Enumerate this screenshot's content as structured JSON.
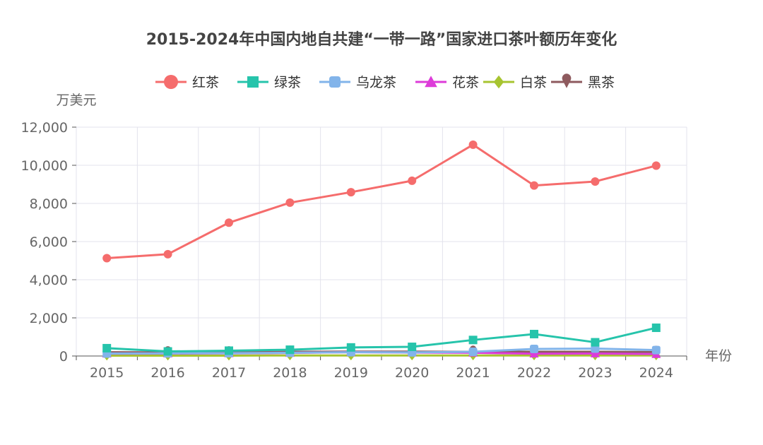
{
  "chart_data": {
    "type": "line",
    "title": "2015-2024年中国内地自共建“一带一路”国家进口茶叶额历年变化",
    "ylabel": "万美元",
    "xlabel": "年份",
    "ylim": [
      0,
      12000
    ],
    "yticks": [
      0,
      2000,
      4000,
      6000,
      8000,
      10000,
      12000
    ],
    "ytick_labels": [
      "0",
      "2,000",
      "4,000",
      "6,000",
      "8,000",
      "10,000",
      "12,000"
    ],
    "categories": [
      "2015",
      "2016",
      "2017",
      "2018",
      "2019",
      "2020",
      "2021",
      "2022",
      "2023",
      "2024"
    ],
    "legend_position": "top-center",
    "grid": true,
    "series": [
      {
        "name": "红茶",
        "color": "#f56c6c",
        "marker": "circle",
        "values": [
          5130,
          5340,
          6990,
          8040,
          8590,
          9190,
          11080,
          8940,
          9150,
          9980
        ]
      },
      {
        "name": "绿茶",
        "color": "#26c4ab",
        "marker": "square",
        "values": [
          410,
          240,
          280,
          330,
          450,
          480,
          840,
          1150,
          720,
          1480
        ]
      },
      {
        "name": "乌龙茶",
        "color": "#82b4ea",
        "marker": "roundrect",
        "values": [
          130,
          140,
          150,
          170,
          200,
          190,
          220,
          370,
          390,
          310
        ]
      },
      {
        "name": "花茶",
        "color": "#dd3bd9",
        "marker": "triangle",
        "values": [
          120,
          130,
          140,
          160,
          200,
          180,
          170,
          120,
          130,
          100
        ]
      },
      {
        "name": "白茶",
        "color": "#a7c430",
        "marker": "diamond",
        "values": [
          20,
          20,
          20,
          30,
          30,
          30,
          30,
          30,
          30,
          30
        ]
      },
      {
        "name": "黑茶",
        "color": "#8e5a5e",
        "marker": "pin",
        "values": [
          200,
          190,
          190,
          220,
          230,
          230,
          220,
          220,
          220,
          210
        ]
      }
    ]
  }
}
